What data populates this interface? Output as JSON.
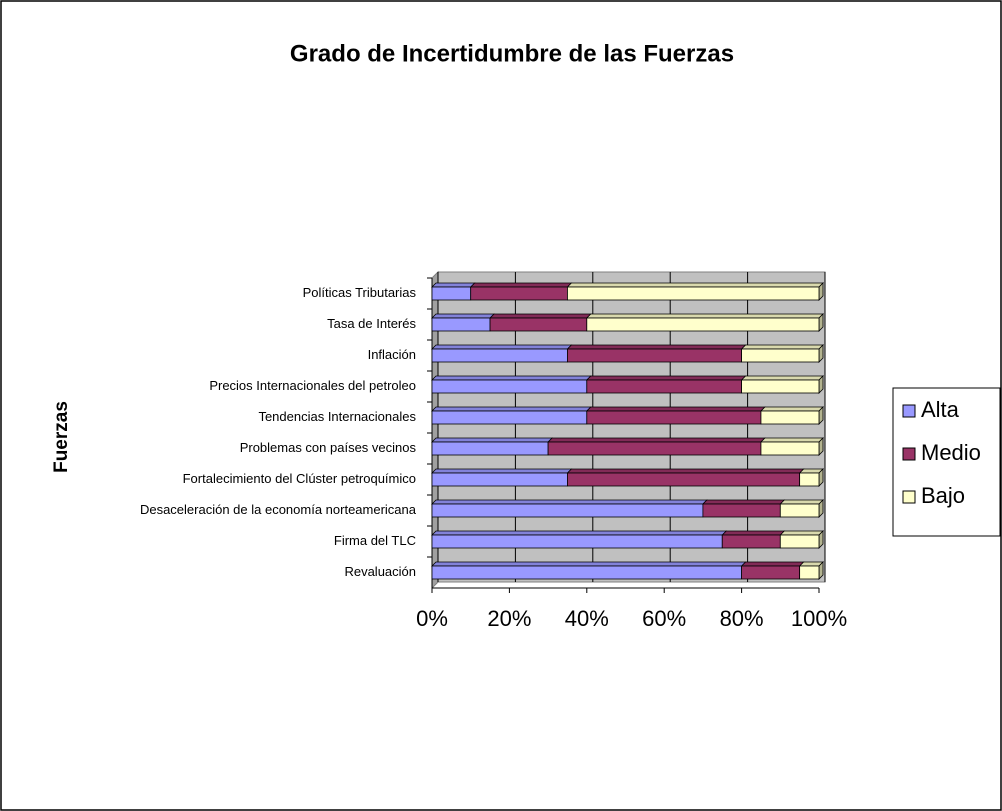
{
  "chart_data": {
    "type": "bar",
    "orientation": "horizontal",
    "stacked": "percent",
    "title": "Grado de Incertidumbre de las Fuerzas",
    "y_label": "Fuerzas",
    "categories": [
      "Políticas Tributarias",
      "Tasa de Interés",
      "Inflación",
      "Precios Internacionales del petroleo",
      "Tendencias Internacionales",
      "Problemas con países vecinos",
      "Fortalecimiento del Clúster petroquímico",
      "Desaceleración de la economía norteamericana",
      "Firma del TLC",
      "Revaluación"
    ],
    "series": [
      {
        "name": "Alta",
        "color": "#9999ff",
        "values": [
          10,
          15,
          35,
          40,
          40,
          30,
          35,
          70,
          75,
          80
        ]
      },
      {
        "name": "Medio",
        "color": "#993366",
        "values": [
          25,
          25,
          45,
          40,
          45,
          55,
          60,
          20,
          15,
          15
        ]
      },
      {
        "name": "Bajo",
        "color": "#ffffcc",
        "values": [
          65,
          60,
          20,
          20,
          15,
          15,
          5,
          10,
          10,
          5
        ]
      }
    ],
    "xlim": [
      0,
      100
    ],
    "xticks": [
      {
        "value": 0,
        "label": "0%"
      },
      {
        "value": 20,
        "label": "20%"
      },
      {
        "value": 40,
        "label": "40%"
      },
      {
        "value": 60,
        "label": "60%"
      },
      {
        "value": 80,
        "label": "80%"
      },
      {
        "value": 100,
        "label": "100%"
      }
    ],
    "grid": true,
    "legend": "right"
  }
}
